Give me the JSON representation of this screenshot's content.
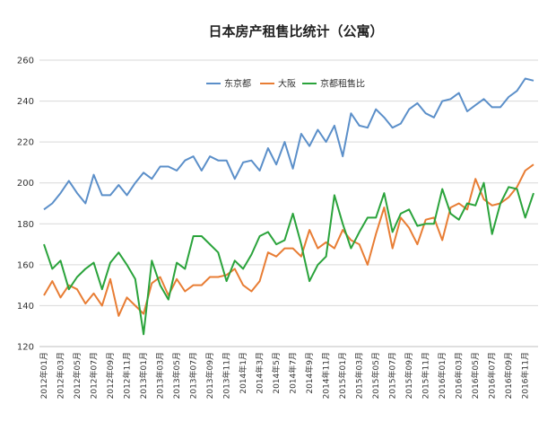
{
  "chart_data": {
    "type": "line",
    "title": "日本房产租售比统计（公寓）",
    "ylim": [
      120,
      260
    ],
    "yticks": [
      120,
      140,
      160,
      180,
      200,
      220,
      240,
      260
    ],
    "grid": true,
    "legend_position": "top-left",
    "categories": [
      "2012年01月",
      "2012年02月",
      "2012年03月",
      "2012年04月",
      "2012年05月",
      "2012年06月",
      "2012年07月",
      "2012年08月",
      "2012年09月",
      "2012年10月",
      "2012年11月",
      "2012年12月",
      "2013年01月",
      "2013年02月",
      "2013年03月",
      "2013年04月",
      "2013年05月",
      "2013年06月",
      "2013年07月",
      "2013年08月",
      "2013年09月",
      "2013年10月",
      "2013年11月",
      "2013年12月",
      "2014年1月",
      "2014年2月",
      "2014年3月",
      "2014年4月",
      "2014年5月",
      "2014年6月",
      "2014年7月",
      "2014年8月",
      "2014年9月",
      "2014年10月",
      "2014年11月",
      "2014年12月",
      "2015年01月",
      "2015年02月",
      "2015年03月",
      "2015年04月",
      "2015年05月",
      "2015年06月",
      "2015年07月",
      "2015年08月",
      "2015年09月",
      "2015年10月",
      "2015年11月",
      "2015年12月",
      "2016年01月",
      "2016年02月",
      "2016年03月",
      "2016年04月",
      "2016年05月",
      "2016年06月",
      "2016年07月",
      "2016年08月",
      "2016年09月",
      "2016年10月",
      "2016年11月",
      "2016年12月"
    ],
    "xtick_labels": [
      "2012年01月",
      "2012年03月",
      "2012年05月",
      "2012年07月",
      "2012年09月",
      "2012年11月",
      "2013年01月",
      "2013年03月",
      "2013年05月",
      "2013年07月",
      "2013年09月",
      "2013年11月",
      "2014年1月",
      "2014年3月",
      "2014年5月",
      "2014年7月",
      "2014年9月",
      "2014年11月",
      "2015年01月",
      "2015年03月",
      "2015年05月",
      "2015年07月",
      "2015年09月",
      "2015年11月",
      "2016年01月",
      "2016年03月",
      "2016年05月",
      "2016年07月",
      "2016年09月",
      "2016年11月"
    ],
    "series": [
      {
        "name": "东京都",
        "color": "#5b8fc9",
        "values": [
          187,
          190,
          195,
          201,
          195,
          190,
          204,
          194,
          194,
          199,
          194,
          200,
          205,
          202,
          208,
          208,
          206,
          211,
          213,
          206,
          213,
          211,
          211,
          202,
          210,
          211,
          206,
          217,
          209,
          220,
          207,
          224,
          218,
          226,
          220,
          228,
          213,
          234,
          228,
          227,
          236,
          232,
          227,
          229,
          236,
          239,
          234,
          232,
          240,
          241,
          244,
          235,
          238,
          241,
          237,
          237,
          242,
          245,
          251,
          250
        ]
      },
      {
        "name": "大阪",
        "color": "#e87d34",
        "values": [
          145,
          152,
          144,
          150,
          148,
          141,
          146,
          140,
          153,
          135,
          144,
          140,
          136,
          151,
          154,
          145,
          153,
          147,
          150,
          150,
          154,
          154,
          155,
          158,
          150,
          147,
          152,
          166,
          164,
          168,
          168,
          164,
          177,
          168,
          171,
          168,
          177,
          172,
          170,
          160,
          175,
          188,
          168,
          183,
          178,
          170,
          182,
          183,
          172,
          188,
          190,
          187,
          202,
          192,
          189,
          190,
          193,
          198,
          206,
          209
        ]
      },
      {
        "name": "京都租售比",
        "color": "#2aa33b",
        "values": [
          170,
          158,
          162,
          148,
          154,
          158,
          161,
          148,
          161,
          166,
          160,
          153,
          126,
          162,
          150,
          143,
          161,
          158,
          174,
          174,
          170,
          166,
          152,
          162,
          158,
          165,
          174,
          176,
          170,
          172,
          185,
          170,
          152,
          160,
          164,
          194,
          180,
          168,
          176,
          183,
          183,
          195,
          176,
          185,
          187,
          179,
          180,
          180,
          197,
          185,
          182,
          190,
          189,
          200,
          175,
          190,
          198,
          197,
          183,
          195
        ]
      }
    ]
  }
}
